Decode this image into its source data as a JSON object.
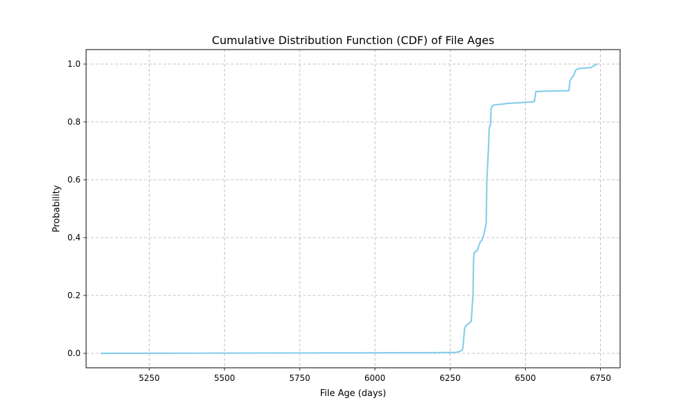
{
  "chart_data": {
    "type": "line",
    "title": "Cumulative Distribution Function (CDF) of File Ages",
    "xlabel": "File Age (days)",
    "ylabel": "Probability",
    "xlim": [
      5040,
      6815
    ],
    "ylim": [
      -0.05,
      1.05
    ],
    "xticks": [
      5250,
      5500,
      5750,
      6000,
      6250,
      6500,
      6750
    ],
    "yticks": [
      0.0,
      0.2,
      0.4,
      0.6,
      0.8,
      1.0
    ],
    "grid": true,
    "series": [
      {
        "color": "#87CEEB",
        "x": [
          5090,
          6150,
          6270,
          6285,
          6292,
          6296,
          6298,
          6300,
          6302,
          6320,
          6326,
          6328,
          6330,
          6332,
          6340,
          6345,
          6350,
          6355,
          6362,
          6366,
          6370,
          6372,
          6374,
          6375,
          6377,
          6380,
          6382,
          6384,
          6386,
          6390,
          6395,
          6405,
          6420,
          6440,
          6455,
          6480,
          6500,
          6530,
          6535,
          6560,
          6600,
          6645,
          6648,
          6652,
          6660,
          6668,
          6680,
          6700,
          6718,
          6730,
          6738
        ],
        "y": [
          0.0,
          0.002,
          0.003,
          0.008,
          0.015,
          0.06,
          0.085,
          0.09,
          0.095,
          0.11,
          0.2,
          0.33,
          0.345,
          0.35,
          0.355,
          0.37,
          0.385,
          0.39,
          0.41,
          0.43,
          0.45,
          0.6,
          0.64,
          0.66,
          0.7,
          0.78,
          0.785,
          0.79,
          0.845,
          0.855,
          0.858,
          0.86,
          0.861,
          0.864,
          0.865,
          0.866,
          0.868,
          0.87,
          0.905,
          0.906,
          0.907,
          0.908,
          0.94,
          0.95,
          0.96,
          0.98,
          0.985,
          0.986,
          0.988,
          0.995,
          1.0
        ]
      }
    ]
  }
}
